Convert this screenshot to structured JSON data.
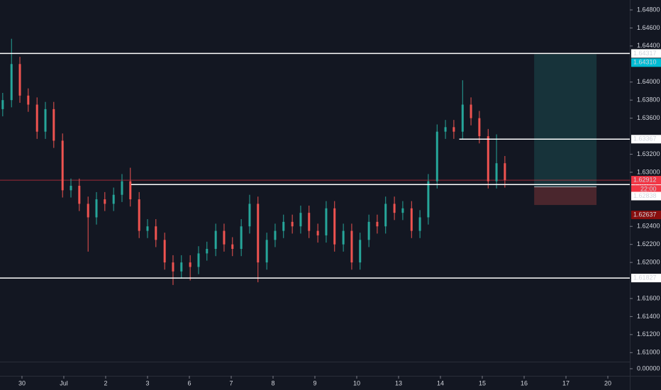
{
  "chart_data": {
    "type": "candlestick",
    "up_color": "#26a69a",
    "down_color": "#ef5350",
    "x": [
      -0.46,
      -0.25,
      -0.05,
      0.15,
      0.36,
      0.56,
      0.76,
      0.97,
      1.17,
      1.37,
      1.58,
      1.78,
      1.98,
      2.19,
      2.39,
      2.59,
      2.8,
      3.0,
      3.2,
      3.41,
      3.61,
      3.81,
      4.02,
      4.22,
      4.42,
      4.63,
      4.83,
      5.03,
      5.24,
      5.44,
      5.64,
      5.85,
      6.05,
      6.25,
      6.46,
      6.66,
      6.86,
      7.07,
      7.27,
      7.47,
      7.68,
      7.88,
      8.08,
      8.29,
      8.49,
      8.69,
      8.9,
      9.1,
      9.31,
      9.51,
      9.71,
      9.92,
      10.12,
      10.32,
      10.53,
      10.73,
      10.93,
      11.14,
      11.34,
      11.54
    ],
    "open": [
      1.637,
      1.638,
      1.642,
      1.6385,
      1.6375,
      1.6345,
      1.637,
      1.6335,
      1.628,
      1.6285,
      1.6265,
      1.625,
      1.627,
      1.6265,
      1.6275,
      1.629,
      1.627,
      1.6235,
      1.624,
      1.6225,
      1.62,
      1.619,
      1.62,
      1.6195,
      1.621,
      1.6215,
      1.6235,
      1.622,
      1.6215,
      1.624,
      1.6265,
      1.62,
      1.6225,
      1.6235,
      1.6245,
      1.624,
      1.6255,
      1.6235,
      1.623,
      1.626,
      1.622,
      1.6235,
      1.62,
      1.6225,
      1.6245,
      1.624,
      1.6265,
      1.6255,
      1.626,
      1.6235,
      1.625,
      1.629,
      1.6345,
      1.635,
      1.6345,
      1.6375,
      1.636,
      1.634,
      1.629,
      1.631
    ],
    "high": [
      1.6388,
      1.6448,
      1.6428,
      1.6393,
      1.6383,
      1.6378,
      1.6378,
      1.6343,
      1.6293,
      1.6293,
      1.6273,
      1.6278,
      1.6278,
      1.6283,
      1.6298,
      1.6305,
      1.6278,
      1.6248,
      1.6248,
      1.6233,
      1.6208,
      1.6208,
      1.6208,
      1.6218,
      1.6223,
      1.6243,
      1.6243,
      1.6228,
      1.6248,
      1.6275,
      1.6273,
      1.6233,
      1.6243,
      1.6253,
      1.6253,
      1.6263,
      1.6263,
      1.6243,
      1.6268,
      1.6268,
      1.6243,
      1.6243,
      1.6233,
      1.6253,
      1.6253,
      1.6273,
      1.6273,
      1.6268,
      1.6268,
      1.6258,
      1.6298,
      1.6353,
      1.6358,
      1.6358,
      1.6402,
      1.6383,
      1.6368,
      1.6348,
      1.6342,
      1.6318
    ],
    "low": [
      1.6362,
      1.6372,
      1.6377,
      1.6367,
      1.6337,
      1.6337,
      1.6327,
      1.6272,
      1.6272,
      1.6257,
      1.6212,
      1.6242,
      1.6257,
      1.6257,
      1.6267,
      1.6262,
      1.6227,
      1.6227,
      1.6217,
      1.6192,
      1.6175,
      1.6182,
      1.618,
      1.6187,
      1.6202,
      1.6207,
      1.6212,
      1.6207,
      1.6207,
      1.6232,
      1.6178,
      1.6192,
      1.6217,
      1.6227,
      1.6232,
      1.6232,
      1.6227,
      1.6222,
      1.6222,
      1.6212,
      1.6212,
      1.6192,
      1.6192,
      1.6217,
      1.6232,
      1.6232,
      1.6247,
      1.6247,
      1.6227,
      1.6227,
      1.6242,
      1.6282,
      1.6337,
      1.6337,
      1.6337,
      1.6352,
      1.6332,
      1.6282,
      1.6282,
      1.6283
    ],
    "close": [
      1.638,
      1.642,
      1.6385,
      1.6375,
      1.6345,
      1.637,
      1.6335,
      1.628,
      1.6285,
      1.6265,
      1.625,
      1.627,
      1.6265,
      1.6275,
      1.629,
      1.627,
      1.6235,
      1.624,
      1.6225,
      1.62,
      1.619,
      1.62,
      1.6195,
      1.621,
      1.6215,
      1.6235,
      1.622,
      1.6215,
      1.624,
      1.6265,
      1.62,
      1.6225,
      1.6235,
      1.6245,
      1.624,
      1.6255,
      1.6235,
      1.623,
      1.626,
      1.622,
      1.6235,
      1.62,
      1.6225,
      1.6245,
      1.624,
      1.6265,
      1.6255,
      1.626,
      1.6235,
      1.625,
      1.629,
      1.6345,
      1.635,
      1.6345,
      1.6375,
      1.636,
      1.634,
      1.629,
      1.631,
      1.62912
    ],
    "xlim": [
      -0.525,
      14.525
    ],
    "xticks": [
      {
        "value": 0,
        "label": "30"
      },
      {
        "value": 1,
        "label": "Jul"
      },
      {
        "value": 2,
        "label": "2"
      },
      {
        "value": 3,
        "label": "3"
      },
      {
        "value": 4,
        "label": "6"
      },
      {
        "value": 5,
        "label": "7"
      },
      {
        "value": 6,
        "label": "8"
      },
      {
        "value": 7,
        "label": "9"
      },
      {
        "value": 8,
        "label": "10"
      },
      {
        "value": 9,
        "label": "13"
      },
      {
        "value": 10,
        "label": "14"
      },
      {
        "value": 11,
        "label": "15"
      },
      {
        "value": 12,
        "label": "16"
      },
      {
        "value": 13,
        "label": "17"
      },
      {
        "value": 14,
        "label": "20"
      }
    ],
    "ylim": [
      1.609,
      1.6491
    ],
    "yticks": [
      {
        "value": 1.648,
        "label": "1.64800"
      },
      {
        "value": 1.646,
        "label": "1.64600"
      },
      {
        "value": 1.644,
        "label": "1.64400"
      },
      {
        "value": 1.64,
        "label": "1.64000"
      },
      {
        "value": 1.638,
        "label": "1.63800"
      },
      {
        "value": 1.636,
        "label": "1.63600"
      },
      {
        "value": 1.632,
        "label": "1.63200"
      },
      {
        "value": 1.63,
        "label": "1.63000"
      },
      {
        "value": 1.624,
        "label": "1.62400"
      },
      {
        "value": 1.622,
        "label": "1.62200"
      },
      {
        "value": 1.62,
        "label": "1.62000"
      },
      {
        "value": 1.616,
        "label": "1.61600"
      },
      {
        "value": 1.614,
        "label": "1.61400"
      },
      {
        "value": 1.612,
        "label": "1.61200"
      },
      {
        "value": 1.61,
        "label": "1.61000"
      }
    ],
    "levels": [
      {
        "value": 1.64317,
        "start": -0.525
      },
      {
        "value": 1.63367,
        "start": 10.45
      },
      {
        "value": 1.62864,
        "start": 2.61
      },
      {
        "value": 1.61827,
        "start": -0.525
      }
    ],
    "current_price": {
      "value": 1.62912,
      "color": "#f23645",
      "countdown": "22:00"
    },
    "position": {
      "x": [
        12.24,
        13.73
      ],
      "entry": 1.62838,
      "target": {
        "value": 1.6431,
        "label": "1.64310"
      },
      "stop": 1.62637
    },
    "lower_pane_ticks": [
      {
        "value": 0,
        "label": "0.00000"
      }
    ]
  }
}
